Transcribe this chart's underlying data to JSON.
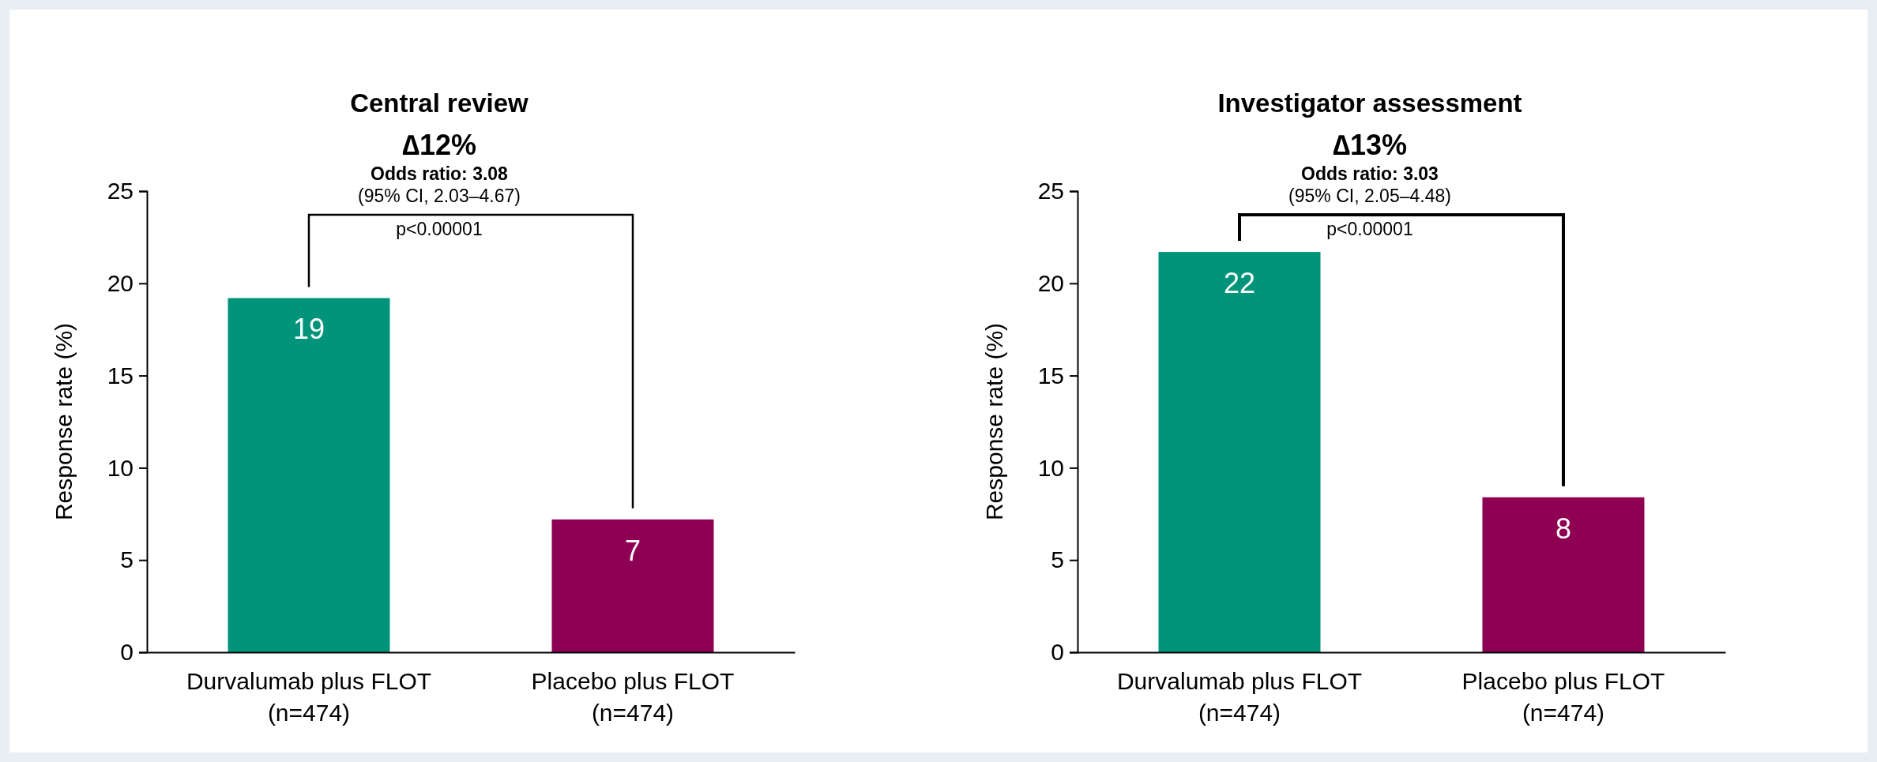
{
  "chart_data": [
    {
      "type": "bar",
      "title": "Central review",
      "ylabel": "Response rate (%)",
      "categories": [
        "Durvalumab plus FLOT\n(n=474)",
        "Placebo plus FLOT\n(n=474)"
      ],
      "values": [
        19.2,
        7.2
      ],
      "value_labels": [
        "19",
        "7"
      ],
      "colors": [
        "#00957a",
        "#8e0052"
      ],
      "ylim": [
        0,
        25
      ],
      "yticks": [
        0,
        5,
        10,
        15,
        20,
        25
      ],
      "annotations": [
        "∆12%",
        "Odds ratio: 3.08",
        "(95% CI, 2.03–4.67)",
        "p<0.00001"
      ]
    },
    {
      "type": "bar",
      "title": "Investigator assessment",
      "ylabel": "Response rate (%)",
      "categories": [
        "Durvalumab plus FLOT\n(n=474)",
        "Placebo plus FLOT\n(n=474)"
      ],
      "values": [
        21.7,
        8.4
      ],
      "value_labels": [
        "22",
        "8"
      ],
      "colors": [
        "#00957a",
        "#8e0052"
      ],
      "ylim": [
        0,
        25
      ],
      "yticks": [
        0,
        5,
        10,
        15,
        20,
        25
      ],
      "annotations": [
        "∆13%",
        "Odds ratio: 3.03",
        "(95% CI, 2.05–4.48)",
        "p<0.00001"
      ]
    }
  ]
}
